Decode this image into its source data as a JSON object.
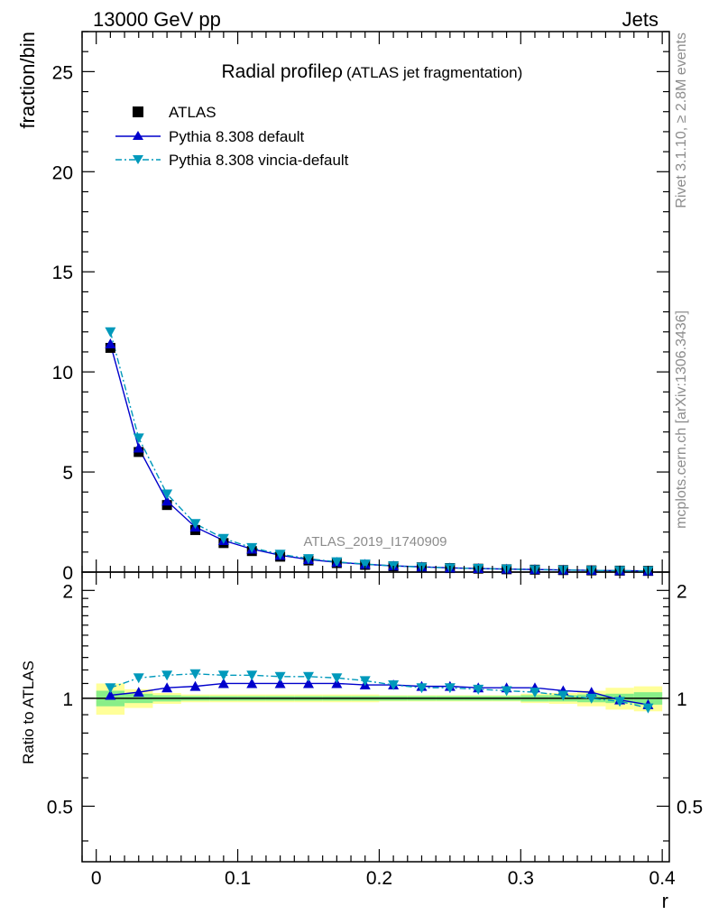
{
  "header": {
    "left": "13000 GeV pp",
    "right": "Jets"
  },
  "side_labels": {
    "rivet": "Rivet 3.1.10, ≥ 2.8M events",
    "mcplots": "mcplots.cern.ch [arXiv:1306.3436]"
  },
  "analysis_id": "ATLAS_2019_I1740909",
  "chart_data": [
    {
      "type": "scatter",
      "title": "Radial profileρ",
      "subtitle": "(ATLAS jet fragmentation)",
      "ylabel": "fraction/bin",
      "ylim": [
        0,
        27
      ],
      "xlim": [
        -0.01,
        0.405
      ],
      "yticks": [
        0,
        5,
        10,
        15,
        20,
        25
      ],
      "ytick_labels": [
        "0",
        "5",
        "10",
        "15",
        "20",
        "25"
      ],
      "legend_position": "top-left",
      "x": [
        0.01,
        0.03,
        0.05,
        0.07,
        0.09,
        0.11,
        0.13,
        0.15,
        0.17,
        0.19,
        0.21,
        0.23,
        0.25,
        0.27,
        0.29,
        0.31,
        0.33,
        0.35,
        0.37,
        0.39
      ],
      "series": [
        {
          "name": "ATLAS",
          "color": "#000000",
          "marker": "square",
          "values": [
            11.2,
            6.0,
            3.35,
            2.1,
            1.45,
            1.05,
            0.77,
            0.58,
            0.45,
            0.36,
            0.29,
            0.24,
            0.2,
            0.17,
            0.14,
            0.12,
            0.1,
            0.085,
            0.072,
            0.06
          ]
        },
        {
          "name": "Pythia 8.308 default",
          "color": "#0000cc",
          "marker": "triangle-up",
          "line": "solid",
          "values": [
            11.4,
            6.2,
            3.55,
            2.25,
            1.58,
            1.15,
            0.84,
            0.63,
            0.49,
            0.39,
            0.31,
            0.26,
            0.21,
            0.18,
            0.15,
            0.13,
            0.105,
            0.088,
            0.071,
            0.057
          ]
        },
        {
          "name": "Pythia 8.308 vincia-default",
          "color": "#0099bb",
          "marker": "triangle-down",
          "line": "dashdot",
          "values": [
            12.0,
            6.7,
            3.9,
            2.42,
            1.68,
            1.22,
            0.89,
            0.67,
            0.51,
            0.4,
            0.31,
            0.25,
            0.21,
            0.18,
            0.15,
            0.12,
            0.102,
            0.085,
            0.071,
            0.056
          ]
        }
      ]
    },
    {
      "type": "scatter",
      "ylabel": "Ratio to ATLAS",
      "xlabel": "r",
      "xlim": [
        -0.01,
        0.405
      ],
      "ylim": [
        0.35,
        2.25
      ],
      "yticks": [
        0.5,
        1,
        2
      ],
      "ytick_labels": [
        "0.5",
        "1",
        "2"
      ],
      "xticks": [
        0,
        0.1,
        0.2,
        0.3,
        0.4
      ],
      "xtick_labels": [
        "0",
        "0.1",
        "0.2",
        "0.3",
        "0.4"
      ],
      "x": [
        0.01,
        0.03,
        0.05,
        0.07,
        0.09,
        0.11,
        0.13,
        0.15,
        0.17,
        0.19,
        0.21,
        0.23,
        0.25,
        0.27,
        0.29,
        0.31,
        0.33,
        0.35,
        0.37,
        0.39
      ],
      "band_stat": [
        0.05,
        0.03,
        0.02,
        0.015,
        0.015,
        0.015,
        0.015,
        0.015,
        0.015,
        0.015,
        0.015,
        0.015,
        0.015,
        0.015,
        0.015,
        0.02,
        0.02,
        0.025,
        0.03,
        0.04
      ],
      "band_total": [
        0.1,
        0.06,
        0.035,
        0.025,
        0.025,
        0.025,
        0.025,
        0.025,
        0.025,
        0.025,
        0.02,
        0.02,
        0.02,
        0.02,
        0.02,
        0.03,
        0.035,
        0.05,
        0.07,
        0.08
      ],
      "series": [
        {
          "name": "Pythia 8.308 default",
          "color": "#0000cc",
          "marker": "triangle-up",
          "line": "solid",
          "values": [
            1.02,
            1.04,
            1.07,
            1.08,
            1.1,
            1.1,
            1.1,
            1.1,
            1.1,
            1.09,
            1.09,
            1.08,
            1.08,
            1.07,
            1.07,
            1.07,
            1.05,
            1.04,
            0.99,
            0.96
          ]
        },
        {
          "name": "Pythia 8.308 vincia-default",
          "color": "#0099bb",
          "marker": "triangle-down",
          "line": "dashdot",
          "values": [
            1.07,
            1.14,
            1.16,
            1.17,
            1.16,
            1.16,
            1.15,
            1.15,
            1.14,
            1.12,
            1.09,
            1.07,
            1.07,
            1.06,
            1.05,
            1.04,
            1.02,
            1.0,
            0.98,
            0.94
          ]
        }
      ]
    }
  ]
}
